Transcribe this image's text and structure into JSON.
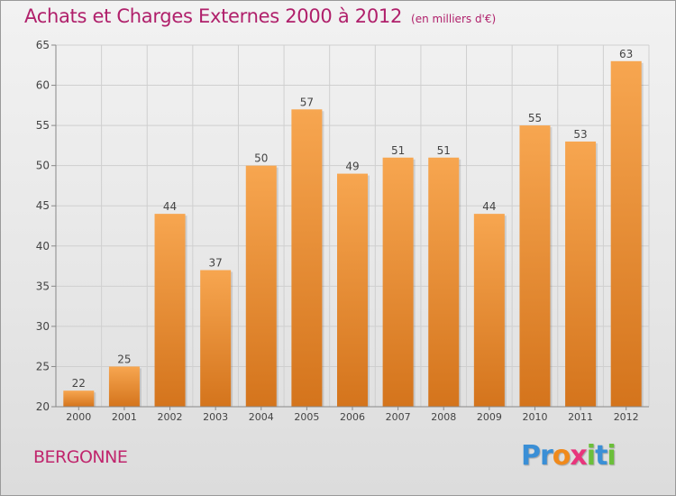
{
  "title": "Achats et Charges Externes 2000 à 2012",
  "subtitle": "(en milliers d'€)",
  "place": "BERGONNE",
  "logo": {
    "text": "Proxiti",
    "letters": [
      {
        "ch": "P",
        "color": "#3a8fd6"
      },
      {
        "ch": "r",
        "color": "#3a8fd6"
      },
      {
        "ch": "o",
        "color": "#f08a1c"
      },
      {
        "ch": "x",
        "color": "#e8357c"
      },
      {
        "ch": "i",
        "color": "#6bbf3a"
      },
      {
        "ch": "t",
        "color": "#3a8fd6"
      },
      {
        "ch": "i",
        "color": "#6bbf3a"
      }
    ]
  },
  "colors": {
    "bar_top": "#f7a650",
    "bar_bottom": "#d4741c",
    "title": "#b0206b",
    "axis_text": "#444444",
    "grid": "#cfcfcf"
  },
  "chart_data": {
    "type": "bar",
    "categories": [
      "2000",
      "2001",
      "2002",
      "2003",
      "2004",
      "2005",
      "2006",
      "2007",
      "2008",
      "2009",
      "2010",
      "2011",
      "2012"
    ],
    "values": [
      22,
      25,
      44,
      37,
      50,
      57,
      49,
      51,
      51,
      44,
      55,
      53,
      63
    ],
    "title": "Achats et Charges Externes 2000 à 2012",
    "xlabel": "",
    "ylabel": "",
    "ylim": [
      20,
      65
    ],
    "yticks": [
      20,
      25,
      30,
      35,
      40,
      45,
      50,
      55,
      60,
      65
    ],
    "grid": true,
    "data_labels": true
  }
}
